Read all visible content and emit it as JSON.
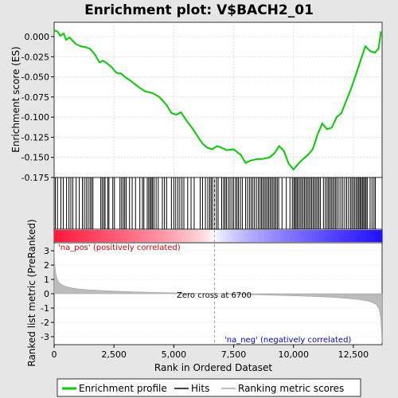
{
  "chart_data": [
    {
      "type": "line",
      "title": "Enrichment plot: V$BACH2_01",
      "ylabel": "Enrichment score (ES)",
      "xlim": [
        0,
        13700
      ],
      "ylim": [
        -0.175,
        0.014
      ],
      "yticks": [
        "0.000",
        "-0.025",
        "-0.050",
        "-0.075",
        "-0.100",
        "-0.125",
        "-0.150",
        "-0.175"
      ],
      "ytick_values": [
        0.0,
        -0.025,
        -0.05,
        -0.075,
        -0.1,
        -0.125,
        -0.15,
        -0.175
      ],
      "grid": true,
      "series": [
        {
          "name": "Enrichment profile",
          "color": "#00cc00",
          "x": [
            0,
            150,
            250,
            400,
            500,
            650,
            800,
            900,
            1100,
            1300,
            1500,
            1700,
            1900,
            2050,
            2200,
            2400,
            2600,
            2800,
            2950,
            3200,
            3500,
            3800,
            4100,
            4400,
            4700,
            4900,
            5100,
            5300,
            5500,
            5800,
            6000,
            6200,
            6400,
            6600,
            6800,
            7000,
            7200,
            7500,
            7800,
            8000,
            8200,
            8500,
            8700,
            9000,
            9200,
            9400,
            9600,
            9800,
            10000,
            10200,
            10400,
            10600,
            10800,
            11000,
            11200,
            11400,
            11600,
            11800,
            12000,
            12200,
            12400,
            12600,
            12800,
            13000,
            13200,
            13400,
            13550,
            13650,
            13700
          ],
          "y": [
            0.008,
            0.006,
            0.001,
            0.004,
            -0.004,
            -0.001,
            -0.006,
            -0.009,
            -0.012,
            -0.013,
            -0.015,
            -0.022,
            -0.032,
            -0.03,
            -0.033,
            -0.038,
            -0.045,
            -0.046,
            -0.05,
            -0.055,
            -0.062,
            -0.068,
            -0.07,
            -0.075,
            -0.085,
            -0.095,
            -0.097,
            -0.094,
            -0.103,
            -0.115,
            -0.124,
            -0.133,
            -0.138,
            -0.14,
            -0.136,
            -0.138,
            -0.141,
            -0.14,
            -0.147,
            -0.157,
            -0.154,
            -0.152,
            -0.152,
            -0.15,
            -0.145,
            -0.136,
            -0.142,
            -0.158,
            -0.165,
            -0.158,
            -0.152,
            -0.147,
            -0.14,
            -0.122,
            -0.108,
            -0.115,
            -0.113,
            -0.1,
            -0.095,
            -0.08,
            -0.065,
            -0.048,
            -0.03,
            -0.012,
            -0.018,
            -0.02,
            -0.015,
            0.005,
            0.003
          ]
        }
      ]
    },
    {
      "type": "scatter",
      "name": "hits",
      "series": [
        {
          "name": "Hits",
          "color": "#000000",
          "x": [
            50,
            140,
            280,
            380,
            520,
            620,
            700,
            780,
            920,
            1050,
            1180,
            1260,
            1340,
            1420,
            1500,
            1560,
            1620,
            1950,
            2010,
            2080,
            2130,
            2240,
            2290,
            2450,
            2520,
            2750,
            2820,
            2890,
            2950,
            3010,
            3150,
            3260,
            3400,
            3580,
            3690,
            3750,
            3890,
            3950,
            4010,
            4060,
            4110,
            4170,
            4260,
            4350,
            4520,
            4610,
            4700,
            4900,
            5000,
            5080,
            5170,
            5250,
            5340,
            5420,
            5580,
            5720,
            5850,
            6100,
            6200,
            6320,
            6420,
            6500,
            6560,
            6620,
            6700,
            6780,
            6850,
            7000,
            7080,
            7140,
            7200,
            7280,
            7350,
            7430,
            7500,
            7580,
            7640,
            7700,
            7780,
            7860,
            8000,
            8080,
            8160,
            8230,
            8300,
            8370,
            8450,
            8530,
            8600,
            8660,
            8720,
            8780,
            8840,
            8900,
            8960,
            9020,
            9080,
            9140,
            9200,
            9260,
            9320,
            9380,
            9520,
            9700,
            9850,
            9950,
            10010,
            10060,
            10110,
            10160,
            10220,
            10280,
            10340,
            10400,
            10460,
            10520,
            10580,
            10640,
            10700,
            10760,
            10820,
            10880,
            10940,
            11000,
            11060,
            11120,
            11250,
            11330,
            11400,
            11460,
            11520,
            11580,
            11640,
            11700,
            11760,
            11820,
            11900,
            11980,
            12060,
            12140,
            12220,
            12300,
            12380,
            12440,
            12500,
            12560,
            12620,
            12680,
            12730,
            12780,
            12830,
            12880,
            12930,
            12980,
            13030,
            13080,
            13200,
            13280,
            13360,
            13420
          ]
        }
      ]
    },
    {
      "type": "area",
      "name": "ranked-metric",
      "xlabel": "Rank in Ordered Dataset",
      "ylabel": "Ranked list metric (PreRanked)",
      "xlim": [
        0,
        13700
      ],
      "ylim": [
        -3.6,
        3.6
      ],
      "xticks": [
        "0",
        "2,500",
        "5,000",
        "7,500",
        "10,000",
        "12,500"
      ],
      "xtick_values": [
        0,
        2500,
        5000,
        7500,
        10000,
        12500
      ],
      "yticks": [
        "3",
        "2",
        "1",
        "0",
        "-1",
        "-2",
        "-3"
      ],
      "ytick_values": [
        3,
        2,
        1,
        0,
        -1,
        -2,
        -3
      ],
      "series": [
        {
          "name": "Ranking metric scores",
          "color": "#999999",
          "x": [
            0,
            20,
            60,
            120,
            200,
            350,
            500,
            800,
            1200,
            2000,
            3000,
            4000,
            5000,
            6000,
            6700,
            7500,
            8500,
            9500,
            10500,
            11500,
            12200,
            12800,
            13200,
            13450,
            13580,
            13650,
            13700
          ],
          "y": [
            3.5,
            2.2,
            1.5,
            1.05,
            0.8,
            0.6,
            0.5,
            0.38,
            0.3,
            0.22,
            0.15,
            0.1,
            0.06,
            0.02,
            0.0,
            -0.04,
            -0.08,
            -0.12,
            -0.17,
            -0.24,
            -0.32,
            -0.42,
            -0.55,
            -0.75,
            -1.1,
            -1.8,
            -3.4
          ]
        }
      ],
      "annotations": {
        "pos": "'na_pos' (positively correlated)",
        "neg": "'na_neg' (negatively correlated)",
        "zero": "Zero cross at 6700"
      },
      "zero_cross": 6700
    }
  ],
  "legend": {
    "items": [
      {
        "label": "Enrichment profile",
        "color": "#00cc00"
      },
      {
        "label": "Hits",
        "color": "#000000"
      },
      {
        "label": "Ranking metric scores",
        "color": "#bbbbbb"
      }
    ]
  }
}
